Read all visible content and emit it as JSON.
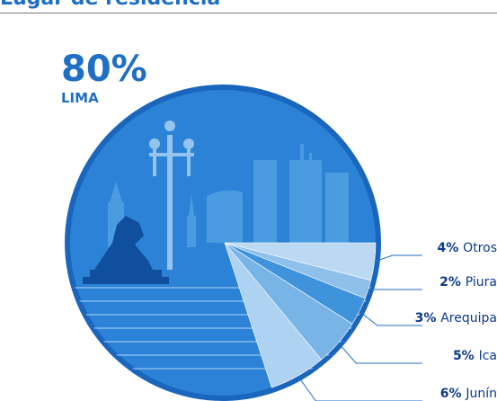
{
  "page": {
    "title": "Lugar de residencia"
  },
  "colors": {
    "brand_blue": "#1f6fc4",
    "label_dark_blue": "#0d3a8a",
    "circle_edge": "#1a66bd",
    "circle_fill": "#2b82d6",
    "skyline": "#4f9ee2"
  },
  "chart_data": {
    "type": "pie",
    "title": "Lugar de residencia",
    "highlight": {
      "label": "LIMA",
      "value_text": "80%"
    },
    "slices": [
      {
        "label": "LIMA",
        "value": 80,
        "value_text": "80%"
      },
      {
        "label": "Otros",
        "value": 4,
        "value_text": "4%"
      },
      {
        "label": "Piura",
        "value": 2,
        "value_text": "2%"
      },
      {
        "label": "Arequipa",
        "value": 3,
        "value_text": "3%"
      },
      {
        "label": "Ica",
        "value": 5,
        "value_text": "5%"
      },
      {
        "label": "Junín",
        "value": 6,
        "value_text": "6%"
      }
    ]
  }
}
